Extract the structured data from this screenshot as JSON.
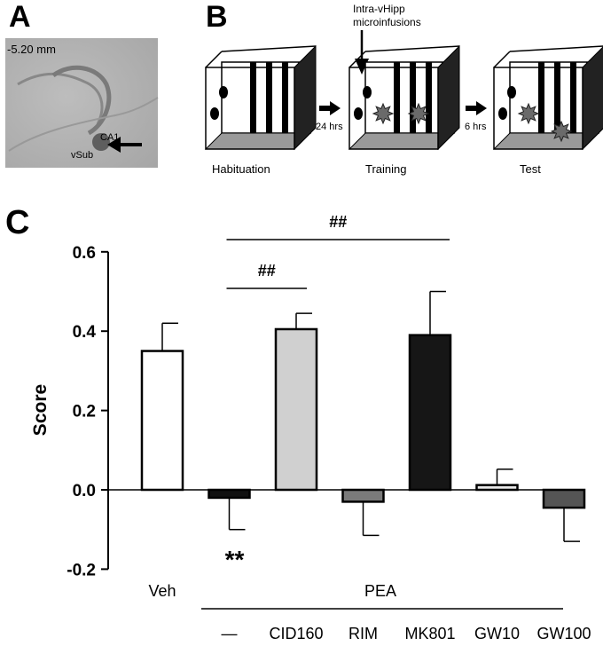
{
  "panels": {
    "a": "A",
    "b": "B",
    "c": "C"
  },
  "histology": {
    "depth_label": "-5.20 mm",
    "ca1_label": "CA1",
    "vsub_label": "vSub"
  },
  "schematic": {
    "infusion_label_line1": "Intra-vHipp",
    "infusion_label_line2": "microinfusions",
    "interval1": "24 hrs",
    "interval2": "6 hrs",
    "stages": [
      "Habituation",
      "Training",
      "Test"
    ]
  },
  "chart_data": {
    "type": "bar",
    "ylabel": "Score",
    "ylim": [
      -0.2,
      0.6
    ],
    "yticks": [
      "-0.2",
      "0.0",
      "0.2",
      "0.4",
      "0.6"
    ],
    "categories": [
      "Veh",
      "—",
      "CID160",
      "RIM",
      "MK801",
      "GW10",
      "GW100"
    ],
    "values": [
      0.35,
      -0.02,
      0.405,
      -0.03,
      0.39,
      0.012,
      -0.045
    ],
    "errors": [
      0.07,
      0.08,
      0.04,
      0.085,
      0.11,
      0.04,
      0.085
    ],
    "bar_colors": [
      "#ffffff",
      "#111111",
      "#d0d0d0",
      "#7a7a7a",
      "#161616",
      "#e8e8e8",
      "#555555"
    ],
    "group_label": "PEA",
    "significance": [
      {
        "label": "##",
        "from": "—",
        "to": "CID160"
      },
      {
        "label": "##",
        "from": "—",
        "to": "MK801"
      }
    ],
    "annotation_below": {
      "label": "**",
      "category": "—"
    }
  }
}
